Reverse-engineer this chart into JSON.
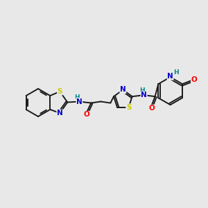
{
  "background_color": "#e8e8e8",
  "bond_color": "#1a1a1a",
  "atom_colors": {
    "N": "#0000cc",
    "S": "#cccc00",
    "O": "#ff0000",
    "H": "#008888",
    "C": "#1a1a1a"
  },
  "figsize": [
    3.0,
    3.0
  ],
  "dpi": 100,
  "lw": 1.4,
  "fs": 7.5,
  "fs_small": 6.5
}
